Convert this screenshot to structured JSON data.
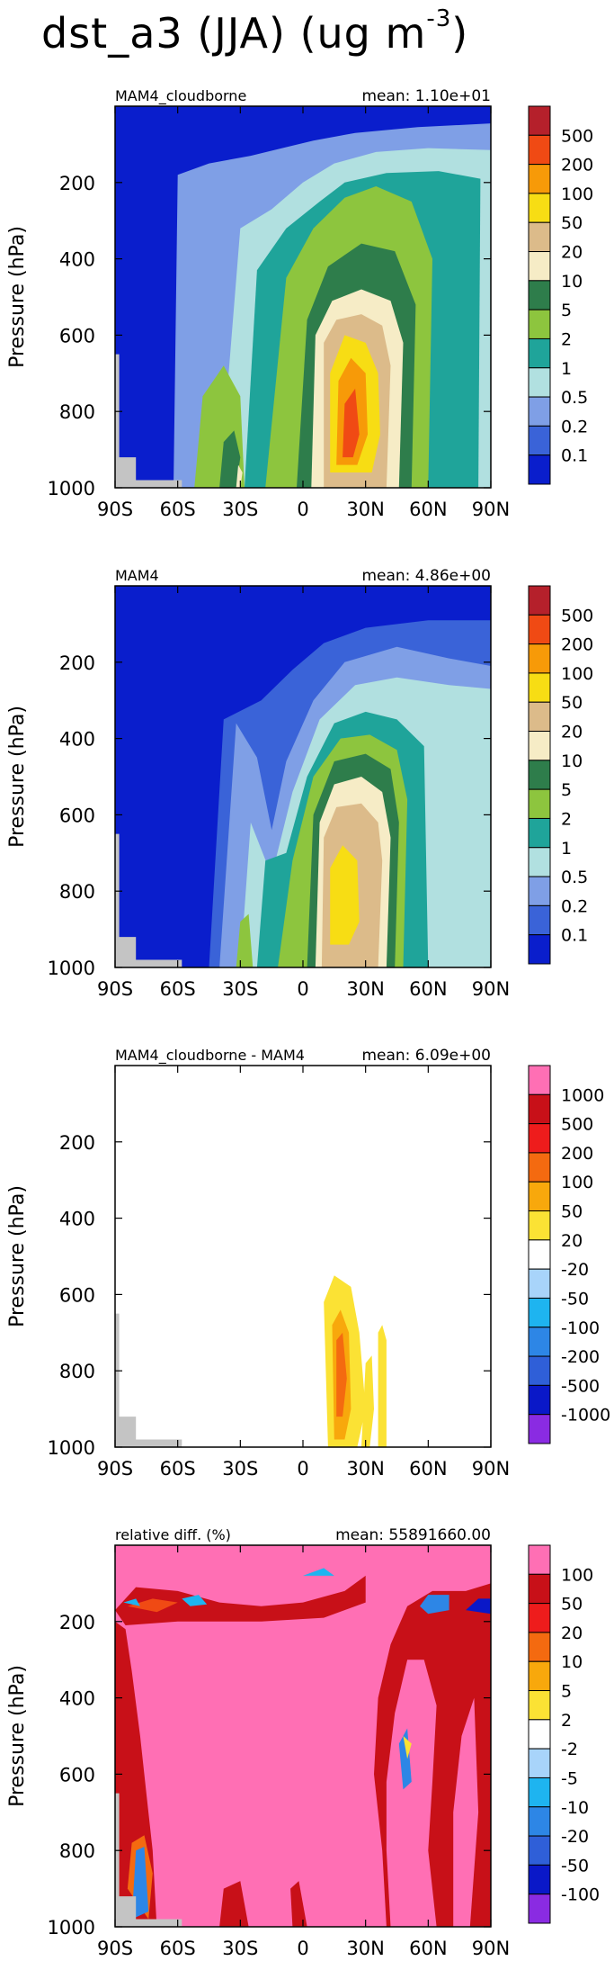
{
  "figure": {
    "title_main": "dst_a3 (JJA) (ug m",
    "title_sup": "-3",
    "title_end": ")"
  },
  "axes": {
    "ylabel": "Pressure (hPa)",
    "yticks": [
      "200",
      "400",
      "600",
      "800",
      "1000"
    ],
    "xticks": [
      "90S",
      "60S",
      "30S",
      "0",
      "30N",
      "60N",
      "90N"
    ]
  },
  "chart_data": [
    {
      "type": "heatmap",
      "panel_label": "MAM4_cloudborne",
      "mean_text": "mean: 1.10e+01",
      "x_range": [
        -90,
        90
      ],
      "y_range": [
        1000,
        0
      ],
      "colorbar_labels": [
        "500",
        "200",
        "100",
        "50",
        "20",
        "10",
        "5",
        "2",
        "1",
        "0.5",
        "0.2",
        "0.1"
      ],
      "colors": [
        "#b5202b",
        "#f04a14",
        "#f79a08",
        "#f7dd14",
        "#dcbb8a",
        "#f6ecc6",
        "#2e7d4b",
        "#8dc53e",
        "#1fa49a",
        "#b1e0e0",
        "#7f9fe6",
        "#3a63d8",
        "#0a1ecc"
      ]
    },
    {
      "type": "heatmap",
      "panel_label": "MAM4",
      "mean_text": "mean: 4.86e+00",
      "x_range": [
        -90,
        90
      ],
      "y_range": [
        1000,
        0
      ],
      "colorbar_labels": [
        "500",
        "200",
        "100",
        "50",
        "20",
        "10",
        "5",
        "2",
        "1",
        "0.5",
        "0.2",
        "0.1"
      ],
      "colors": [
        "#b5202b",
        "#f04a14",
        "#f79a08",
        "#f7dd14",
        "#dcbb8a",
        "#f6ecc6",
        "#2e7d4b",
        "#8dc53e",
        "#1fa49a",
        "#b1e0e0",
        "#7f9fe6",
        "#3a63d8",
        "#0a1ecc"
      ]
    },
    {
      "type": "heatmap",
      "panel_label": "MAM4_cloudborne - MAM4",
      "mean_text": "mean: 6.09e+00",
      "x_range": [
        -90,
        90
      ],
      "y_range": [
        1000,
        0
      ],
      "colorbar_labels": [
        "1000",
        "500",
        "200",
        "100",
        "50",
        "20",
        "-20",
        "-50",
        "-100",
        "-200",
        "-500",
        "-1000"
      ],
      "colors": [
        "#ff6fb4",
        "#c81018",
        "#ee1c1c",
        "#f46a10",
        "#f8a80c",
        "#fbe234",
        "#ffffff",
        "#a8d4fa",
        "#1eb4f0",
        "#2d86e6",
        "#2f5fd8",
        "#0a18c8",
        "#8a2be2"
      ]
    },
    {
      "type": "heatmap",
      "panel_label": "relative diff. (%)",
      "mean_text": "mean: 55891660.00",
      "x_range": [
        -90,
        90
      ],
      "y_range": [
        1000,
        0
      ],
      "colorbar_labels": [
        "100",
        "50",
        "20",
        "10",
        "5",
        "2",
        "-2",
        "-5",
        "-10",
        "-20",
        "-50",
        "-100"
      ],
      "colors": [
        "#ff6fb4",
        "#c81018",
        "#ee1c1c",
        "#f46a10",
        "#f8a80c",
        "#fbe234",
        "#ffffff",
        "#a8d4fa",
        "#1eb4f0",
        "#2d86e6",
        "#2f5fd8",
        "#0a18c8",
        "#8a2be2"
      ]
    }
  ]
}
